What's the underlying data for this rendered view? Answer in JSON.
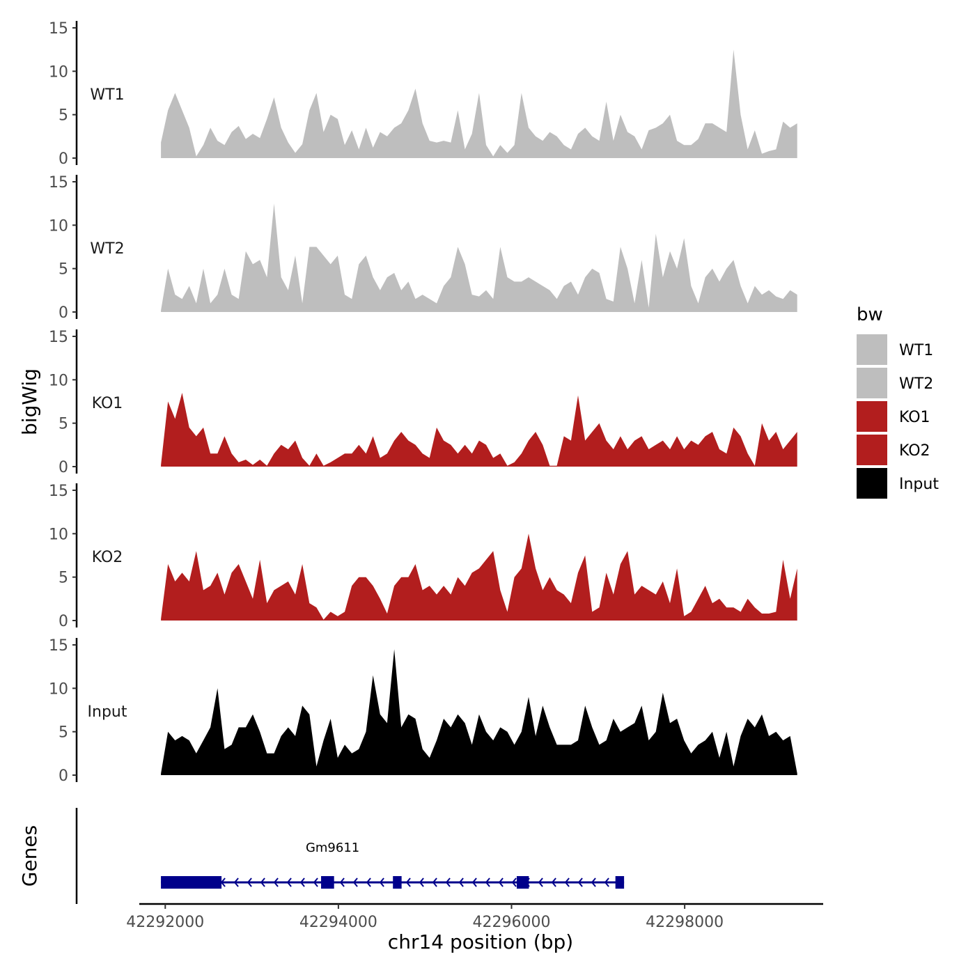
{
  "chart_data": {
    "type": "area",
    "title": "",
    "xlabel": "chr14 position (bp)",
    "ylabel": "bigWig",
    "genes_label": "Genes",
    "legend_title": "bw",
    "x_range": [
      42291700,
      42299600
    ],
    "x_ticks": [
      42292000,
      42294000,
      42296000,
      42298000
    ],
    "x_tick_labels": [
      "42292000",
      "42294000",
      "42296000",
      "42298000"
    ],
    "y_range": [
      0,
      15
    ],
    "y_ticks": [
      0,
      5,
      10,
      15
    ],
    "y_tick_labels": [
      "0",
      "5",
      "10",
      "15"
    ],
    "legend": [
      {
        "name": "WT1",
        "color": "#BEBEBE"
      },
      {
        "name": "WT2",
        "color": "#BEBEBE"
      },
      {
        "name": "KO1",
        "color": "#B21E1E"
      },
      {
        "name": "KO2",
        "color": "#B21E1E"
      },
      {
        "name": "Input",
        "color": "#000000"
      }
    ],
    "series": [
      {
        "name": "WT1",
        "color": "#BEBEBE",
        "x_start": 42291950,
        "x_end": 42299300,
        "values": [
          1.8,
          5.5,
          7.5,
          5.5,
          3.5,
          0.2,
          1.5,
          3.5,
          2.0,
          1.5,
          3.0,
          3.7,
          2.2,
          2.8,
          2.3,
          4.5,
          7.0,
          3.5,
          1.8,
          0.6,
          1.6,
          5.5,
          7.5,
          3.0,
          5.0,
          4.5,
          1.5,
          3.2,
          1.0,
          3.5,
          1.2,
          3.0,
          2.5,
          3.5,
          4.0,
          5.5,
          8.0,
          4.0,
          2.0,
          1.8,
          2.0,
          1.8,
          5.5,
          1.0,
          2.8,
          7.5,
          1.5,
          0.2,
          1.5,
          0.6,
          1.5,
          7.5,
          3.5,
          2.5,
          2.0,
          3.0,
          2.5,
          1.5,
          1.0,
          2.8,
          3.5,
          2.5,
          2.0,
          6.5,
          2.0,
          5.0,
          3.0,
          2.5,
          1.0,
          3.2,
          3.5,
          4.0,
          5.0,
          2.0,
          1.5,
          1.5,
          2.2,
          4.0,
          4.0,
          3.5,
          3.0,
          12.5,
          5.0,
          1.0,
          3.2,
          0.5,
          0.8,
          1.0,
          4.2,
          3.5,
          4.0
        ]
      },
      {
        "name": "WT2",
        "color": "#BEBEBE",
        "x_start": 42291950,
        "x_end": 42299300,
        "values": [
          0.2,
          5.0,
          2.0,
          1.5,
          3.0,
          1.0,
          5.0,
          1.0,
          2.0,
          5.0,
          2.0,
          1.5,
          7.0,
          5.5,
          6.0,
          4.0,
          12.5,
          4.0,
          2.5,
          6.5,
          1.0,
          7.5,
          7.5,
          6.5,
          5.5,
          6.5,
          2.0,
          1.5,
          5.5,
          6.5,
          4.0,
          2.5,
          4.0,
          4.5,
          2.5,
          3.5,
          1.5,
          2.0,
          1.5,
          1.0,
          3.0,
          4.0,
          7.5,
          5.5,
          2.0,
          1.8,
          2.5,
          1.5,
          7.5,
          4.0,
          3.5,
          3.5,
          4.0,
          3.5,
          3.0,
          2.5,
          1.5,
          3.0,
          3.5,
          2.0,
          4.0,
          5.0,
          4.5,
          1.5,
          1.2,
          7.5,
          5.0,
          1.0,
          6.0,
          0.5,
          9.0,
          4.0,
          7.0,
          5.0,
          8.5,
          3.0,
          1.0,
          4.0,
          5.0,
          3.5,
          5.0,
          6.0,
          3.0,
          1.0,
          3.0,
          2.0,
          2.5,
          1.8,
          1.5,
          2.5,
          2.0
        ]
      },
      {
        "name": "KO1",
        "color": "#B21E1E",
        "x_start": 42291950,
        "x_end": 42299300,
        "values": [
          0.2,
          7.5,
          5.5,
          8.5,
          4.5,
          3.5,
          4.5,
          1.5,
          1.5,
          3.5,
          1.5,
          0.5,
          0.8,
          0.2,
          0.8,
          0.1,
          1.5,
          2.5,
          2.0,
          3.0,
          1.0,
          0.1,
          1.5,
          0.1,
          0.5,
          1.0,
          1.5,
          1.5,
          2.5,
          1.5,
          3.5,
          1.0,
          1.5,
          3.0,
          4.0,
          3.0,
          2.5,
          1.5,
          1.0,
          4.5,
          3.0,
          2.5,
          1.5,
          2.5,
          1.5,
          3.0,
          2.5,
          1.0,
          1.5,
          0.1,
          0.5,
          1.5,
          3.0,
          4.0,
          2.5,
          0.1,
          0.1,
          3.5,
          3.0,
          8.2,
          3.0,
          4.0,
          5.0,
          3.0,
          2.0,
          3.5,
          2.0,
          3.0,
          3.5,
          2.0,
          2.5,
          3.0,
          2.0,
          3.5,
          2.0,
          3.0,
          2.5,
          3.5,
          4.0,
          2.0,
          1.5,
          4.5,
          3.5,
          1.5,
          0.1,
          5.0,
          3.0,
          4.0,
          2.0,
          3.0,
          4.0
        ]
      },
      {
        "name": "KO2",
        "color": "#B21E1E",
        "x_start": 42291950,
        "x_end": 42299300,
        "values": [
          0.2,
          6.5,
          4.5,
          5.5,
          4.5,
          8.0,
          3.5,
          4.0,
          5.5,
          3.0,
          5.5,
          6.5,
          4.5,
          2.5,
          7.0,
          2.0,
          3.5,
          4.0,
          4.5,
          3.0,
          6.5,
          2.0,
          1.5,
          0.1,
          1.0,
          0.5,
          1.0,
          4.0,
          5.0,
          5.0,
          4.0,
          2.5,
          0.8,
          4.0,
          5.0,
          5.0,
          6.5,
          3.5,
          4.0,
          3.0,
          4.0,
          3.0,
          5.0,
          4.0,
          5.5,
          6.0,
          7.0,
          8.0,
          3.5,
          1.0,
          5.0,
          6.0,
          10.0,
          6.0,
          3.5,
          5.0,
          3.5,
          3.0,
          2.0,
          5.5,
          7.5,
          1.0,
          1.5,
          5.5,
          3.0,
          6.5,
          8.0,
          3.0,
          4.0,
          3.5,
          3.0,
          4.5,
          2.0,
          6.0,
          0.5,
          1.0,
          2.5,
          4.0,
          2.0,
          2.5,
          1.5,
          1.5,
          1.0,
          2.5,
          1.5,
          0.8,
          0.8,
          1.0,
          7.0,
          2.5,
          6.0
        ]
      },
      {
        "name": "Input",
        "color": "#000000",
        "x_start": 42291950,
        "x_end": 42299300,
        "values": [
          0.2,
          5.0,
          4.0,
          4.5,
          4.0,
          2.5,
          4.0,
          5.5,
          10.0,
          3.0,
          3.5,
          5.5,
          5.5,
          7.0,
          5.0,
          2.5,
          2.5,
          4.5,
          5.5,
          4.5,
          8.0,
          7.0,
          1.0,
          4.0,
          6.5,
          2.0,
          3.5,
          2.5,
          3.0,
          5.0,
          11.5,
          7.0,
          6.0,
          14.5,
          5.5,
          7.0,
          6.5,
          3.0,
          2.0,
          4.0,
          6.5,
          5.5,
          7.0,
          6.0,
          3.5,
          7.0,
          5.0,
          4.0,
          5.5,
          5.0,
          3.5,
          5.0,
          9.0,
          4.5,
          8.0,
          5.5,
          3.5,
          3.5,
          3.5,
          4.0,
          8.0,
          5.5,
          3.5,
          4.0,
          6.5,
          5.0,
          5.5,
          6.0,
          8.0,
          4.0,
          5.0,
          9.5,
          6.0,
          6.5,
          4.0,
          2.5,
          3.5,
          4.0,
          5.0,
          2.0,
          5.0,
          1.0,
          4.5,
          6.5,
          5.5,
          7.0,
          4.5,
          5.0,
          4.0,
          4.5,
          0.2
        ]
      }
    ],
    "gene": {
      "name": "Gm9611",
      "start": 42291950,
      "end": 42297300,
      "strand": "-",
      "color": "#00008B",
      "exons": [
        [
          42291950,
          42292650
        ],
        [
          42293800,
          42293950
        ],
        [
          42294630,
          42294730
        ],
        [
          42296060,
          42296200
        ],
        [
          42297200,
          42297300
        ]
      ]
    }
  }
}
